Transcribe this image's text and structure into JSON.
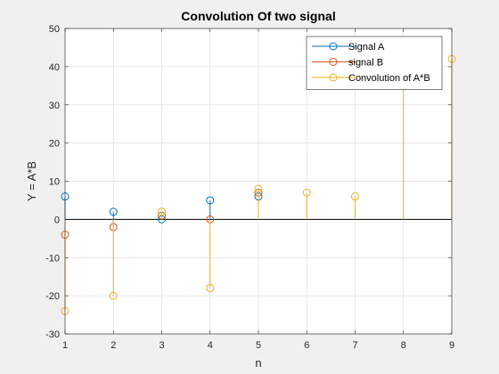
{
  "chart_data": {
    "type": "stem",
    "title": "Convolution Of two signal",
    "xlabel": "n",
    "ylabel": "Y = A*B",
    "xlim": [
      1,
      9
    ],
    "ylim": [
      -30,
      50
    ],
    "x_ticks": [
      1,
      2,
      3,
      4,
      5,
      6,
      7,
      8,
      9
    ],
    "y_ticks": [
      -30,
      -20,
      -10,
      0,
      10,
      20,
      30,
      40,
      50
    ],
    "grid": true,
    "legend_position": "top-right",
    "series": [
      {
        "name": "Signal A",
        "color": "#0072BD",
        "x": [
          1,
          2,
          3,
          4,
          5
        ],
        "values": [
          6,
          2,
          0,
          5,
          6
        ]
      },
      {
        "name": "signal B",
        "color": "#D95319",
        "x": [
          1,
          2,
          3,
          4,
          5
        ],
        "values": [
          -4,
          -2,
          1,
          0,
          7
        ]
      },
      {
        "name": "Convolution of A*B",
        "color": "#EDB120",
        "x": [
          1,
          2,
          3,
          4,
          5,
          6,
          7,
          8,
          9
        ],
        "values": [
          -24,
          -20,
          2,
          -18,
          8,
          7,
          6,
          35,
          42
        ]
      }
    ]
  }
}
